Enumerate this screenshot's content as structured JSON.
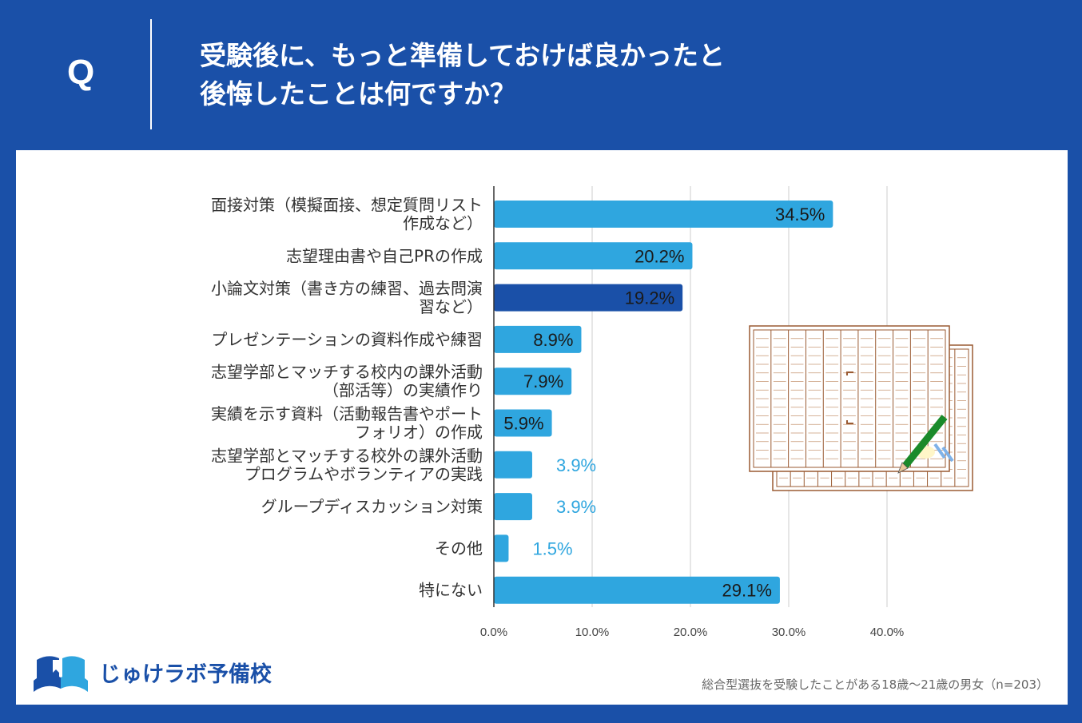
{
  "header": {
    "q_label": "Q",
    "title_line1": "受験後に、もっと準備しておけば良かったと",
    "title_line2": "後悔したことは何ですか？"
  },
  "colors": {
    "header_bg": "#1a50a8",
    "bar": "#2fa6df",
    "bar_highlight": "#1a50a8",
    "outside_label": "#2fa6df"
  },
  "chart_data": {
    "type": "bar",
    "orientation": "horizontal",
    "categories": [
      [
        "面接対策（模擬面接、想定質問リスト",
        "作成など）"
      ],
      [
        "志望理由書や自己PRの作成"
      ],
      [
        "小論文対策（書き方の練習、過去問演",
        "習など）"
      ],
      [
        "プレゼンテーションの資料作成や練習"
      ],
      [
        "志望学部とマッチする校内の課外活動",
        "（部活等）の実績作り"
      ],
      [
        "実績を示す資料（活動報告書やポート",
        "フォリオ）の作成"
      ],
      [
        "志望学部とマッチする校外の課外活動",
        "プログラムやボランティアの実践"
      ],
      [
        "グループディスカッション対策"
      ],
      [
        "その他"
      ],
      [
        "特にない"
      ]
    ],
    "values": [
      34.5,
      20.2,
      19.2,
      8.9,
      7.9,
      5.9,
      3.9,
      3.9,
      1.5,
      29.1
    ],
    "value_labels": [
      "34.5%",
      "20.2%",
      "19.2%",
      "8.9%",
      "7.9%",
      "5.9%",
      "3.9%",
      "3.9%",
      "1.5%",
      "29.1%"
    ],
    "highlight_index": 2,
    "xlim": [
      0,
      48
    ],
    "xticks": [
      0,
      10,
      20,
      30,
      40
    ],
    "xtick_labels": [
      "0.0%",
      "10.0%",
      "20.0%",
      "30.0%",
      "40.0%"
    ],
    "grid": true
  },
  "logo": {
    "text": "じゅけラボ予備校",
    "icon": "open-book-icon"
  },
  "footnote": "総合型選抜を受験したことがある18歳～21歳の男女（n=203）",
  "illustration": {
    "icon": "manuscript-paper-pencil-icon"
  }
}
